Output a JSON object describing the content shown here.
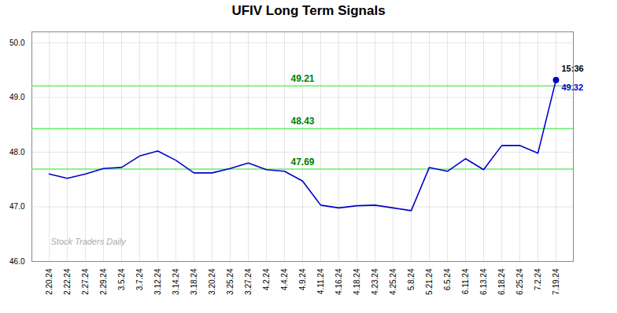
{
  "chart_data": {
    "type": "line",
    "title": "UFIV Long Term Signals",
    "categories": [
      "2.20.24",
      "2.22.24",
      "2.27.24",
      "2.29.24",
      "3.5.24",
      "3.7.24",
      "3.12.24",
      "3.14.24",
      "3.18.24",
      "3.20.24",
      "3.25.24",
      "3.27.24",
      "4.2.24",
      "4.4.24",
      "4.9.24",
      "4.11.24",
      "4.16.24",
      "4.18.24",
      "4.23.24",
      "4.25.24",
      "5.8.24",
      "5.21.24",
      "6.5.24",
      "6.11.24",
      "6.13.24",
      "6.18.24",
      "6.25.24",
      "7.2.24",
      "7.19.24"
    ],
    "values": [
      47.6,
      47.52,
      47.6,
      47.7,
      47.72,
      47.93,
      48.02,
      47.85,
      47.62,
      47.62,
      47.7,
      47.8,
      47.68,
      47.65,
      47.47,
      47.03,
      46.98,
      47.02,
      47.03,
      46.98,
      46.93,
      47.72,
      47.65,
      47.88,
      47.68,
      48.12,
      48.12,
      47.98,
      49.32
    ],
    "color": "#0000cc",
    "reference_lines": {
      "values": [
        47.69,
        48.43,
        49.21
      ],
      "color": "#66ee66"
    },
    "annotations": [
      "15:36",
      "49.32"
    ],
    "watermark": "Stock Traders Daily",
    "ylim": [
      46,
      50.2
    ],
    "yticks": [
      46,
      47,
      48,
      49,
      50
    ],
    "grid": true
  }
}
